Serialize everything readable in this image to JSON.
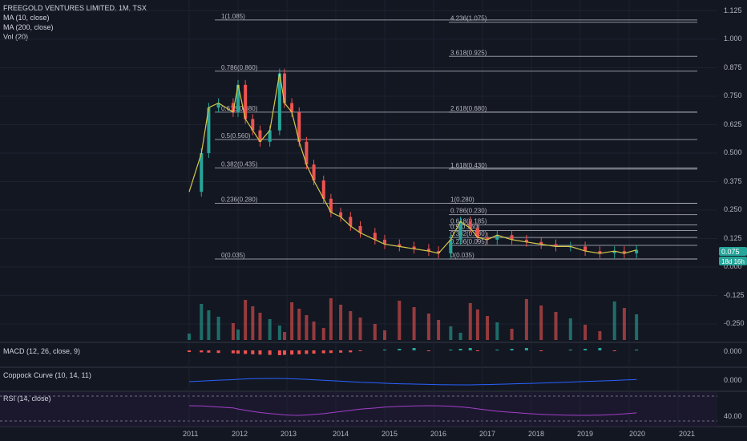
{
  "header": {
    "symbol_line": "FREEGOLD VENTURES LIMITED, 1M, TSX",
    "ma10_label": "MA (10, close)",
    "ma200_label": "MA (200, close)",
    "vol_label": "Vol (20)"
  },
  "panes": {
    "macd_label": "MACD (12, 26, close, 9)",
    "macd_value": "0.000",
    "coppock_label": "Coppock Curve (10, 14, 11)",
    "coppock_value": "0.000",
    "rsi_label": "RSI (14, close)",
    "rsi_value": "40.00"
  },
  "price_axis": {
    "ticks": [
      "1.125",
      "1.000",
      "0.875",
      "0.750",
      "0.625",
      "0.500",
      "0.375",
      "0.250",
      "0.125",
      "0.000",
      "-0.125",
      "-0.250"
    ],
    "last_price": "0.075",
    "countdown": "18d 16h"
  },
  "colors": {
    "background": "#131722",
    "up": "#26a69a",
    "down": "#ef5350",
    "ma": "#d4c94a",
    "fib": "#b2b5be",
    "macd_line": "#2962ff",
    "signal_line": "#ff6d00",
    "rsi": "#a33fc7",
    "grid": "#1e2230"
  },
  "chart_data": {
    "type": "candlestick",
    "title": "FREEGOLD VENTURES LIMITED, 1M, TSX",
    "x_labels": [
      "2011",
      "2012",
      "2013",
      "2014",
      "2015",
      "2016",
      "2017",
      "2018",
      "2019",
      "2020",
      "2021"
    ],
    "ylim": [
      -0.3,
      1.15
    ],
    "grid": true,
    "fib_retracement_1": [
      {
        "label": "1(1.085)",
        "level": 1.085
      },
      {
        "label": "0.786(0.860)",
        "level": 0.86
      },
      {
        "label": "0.618(0.680)",
        "level": 0.68
      },
      {
        "label": "0.5(0.560)",
        "level": 0.56
      },
      {
        "label": "0.382(0.435)",
        "level": 0.435
      },
      {
        "label": "0.236(0.280)",
        "level": 0.28
      },
      {
        "label": "0(0.035)",
        "level": 0.035
      }
    ],
    "fib_retracement_2": [
      {
        "label": "4.236(1.075)",
        "level": 1.075
      },
      {
        "label": "3.618(0.925)",
        "level": 0.925
      },
      {
        "label": "2.618(0.680)",
        "level": 0.68
      },
      {
        "label": "1.618(0.430)",
        "level": 0.43
      },
      {
        "label": "1(0.280)",
        "level": 0.28
      },
      {
        "label": "0.786(0.230)",
        "level": 0.23
      },
      {
        "label": "0.618(0.185)",
        "level": 0.185
      },
      {
        "label": "0.5(0.160)",
        "level": 0.16
      },
      {
        "label": "0.382(0.130)",
        "level": 0.13
      },
      {
        "label": "0.236(0.095)",
        "level": 0.095
      },
      {
        "label": "0(0.035)",
        "level": 0.035
      }
    ],
    "close_points": [
      [
        2011.0,
        0.33
      ],
      [
        2011.25,
        0.5
      ],
      [
        2011.4,
        0.7
      ],
      [
        2011.6,
        0.72
      ],
      [
        2011.9,
        0.68
      ],
      [
        2012.0,
        0.8
      ],
      [
        2012.15,
        0.65
      ],
      [
        2012.3,
        0.6
      ],
      [
        2012.45,
        0.55
      ],
      [
        2012.65,
        0.6
      ],
      [
        2012.85,
        0.85
      ],
      [
        2012.95,
        0.72
      ],
      [
        2013.1,
        0.68
      ],
      [
        2013.25,
        0.55
      ],
      [
        2013.4,
        0.45
      ],
      [
        2013.55,
        0.38
      ],
      [
        2013.75,
        0.3
      ],
      [
        2013.9,
        0.24
      ],
      [
        2014.1,
        0.22
      ],
      [
        2014.3,
        0.18
      ],
      [
        2014.5,
        0.15
      ],
      [
        2014.8,
        0.12
      ],
      [
        2015.0,
        0.1
      ],
      [
        2015.3,
        0.09
      ],
      [
        2015.6,
        0.08
      ],
      [
        2015.9,
        0.07
      ],
      [
        2016.1,
        0.06
      ],
      [
        2016.35,
        0.12
      ],
      [
        2016.55,
        0.2
      ],
      [
        2016.75,
        0.17
      ],
      [
        2016.9,
        0.13
      ],
      [
        2017.1,
        0.12
      ],
      [
        2017.3,
        0.14
      ],
      [
        2017.6,
        0.12
      ],
      [
        2017.9,
        0.11
      ],
      [
        2018.2,
        0.1
      ],
      [
        2018.5,
        0.09
      ],
      [
        2018.8,
        0.09
      ],
      [
        2019.1,
        0.07
      ],
      [
        2019.4,
        0.06
      ],
      [
        2019.7,
        0.07
      ],
      [
        2019.9,
        0.06
      ],
      [
        2020.15,
        0.075
      ]
    ]
  }
}
